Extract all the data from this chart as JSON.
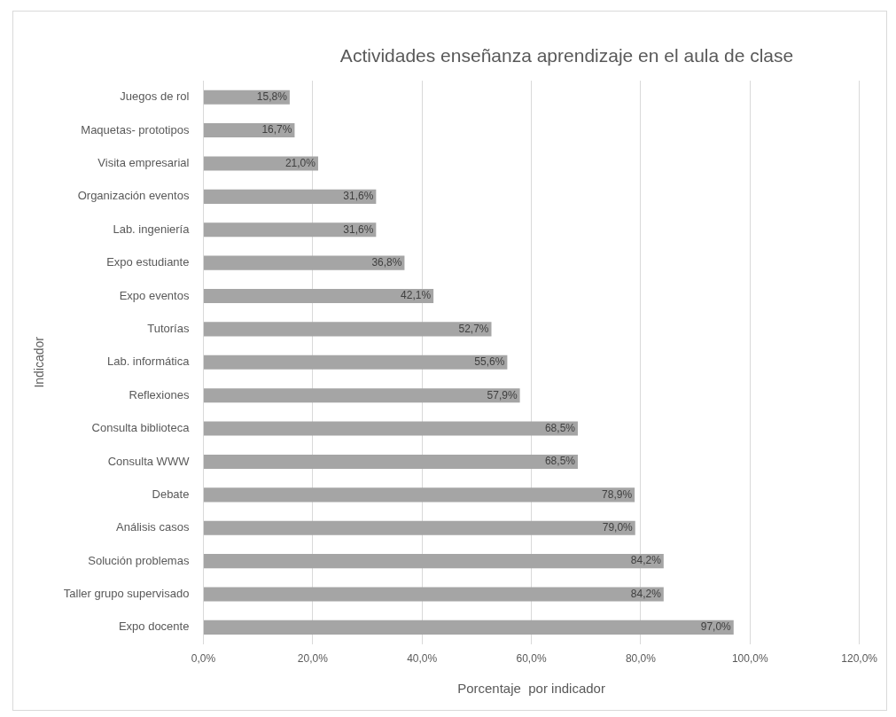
{
  "chart_data": {
    "type": "bar",
    "orientation": "horizontal",
    "title": "Actividades enseñanza aprendizaje en el aula de clase",
    "xlabel": "Porcentaje  por indicador",
    "ylabel": "Indicador",
    "categories": [
      "Juegos de rol",
      "Maquetas- prototipos",
      "Visita empresarial",
      "Organización eventos",
      "Lab. ingeniería",
      "Expo estudiante",
      "Expo eventos",
      "Tutorías",
      "Lab. informática",
      "Reflexiones",
      "Consulta biblioteca",
      "Consulta WWW",
      "Debate",
      "Análisis casos",
      "Solución problemas",
      "Taller grupo supervisado",
      "Expo docente"
    ],
    "values": [
      15.8,
      16.7,
      21.0,
      31.6,
      31.6,
      36.8,
      42.1,
      52.7,
      55.6,
      57.9,
      68.5,
      68.5,
      78.9,
      79.0,
      84.2,
      84.2,
      97.0
    ],
    "value_labels": [
      "15,8%",
      "16,7%",
      "21,0%",
      "31,6%",
      "31,6%",
      "36,8%",
      "42,1%",
      "52,7%",
      "55,6%",
      "57,9%",
      "68,5%",
      "68,5%",
      "78,9%",
      "79,0%",
      "84,2%",
      "84,2%",
      "97,0%"
    ],
    "color": "#a5a5a5",
    "xlim": [
      0,
      120
    ],
    "xticks": [
      {
        "value": 0,
        "label": "0,0%"
      },
      {
        "value": 20,
        "label": "20,0%"
      },
      {
        "value": 40,
        "label": "40,0%"
      },
      {
        "value": 60,
        "label": "60,0%"
      },
      {
        "value": 80,
        "label": "80,0%"
      },
      {
        "value": 100,
        "label": "100,0%"
      },
      {
        "value": 120,
        "label": "120,0%"
      }
    ],
    "grid": "x"
  }
}
